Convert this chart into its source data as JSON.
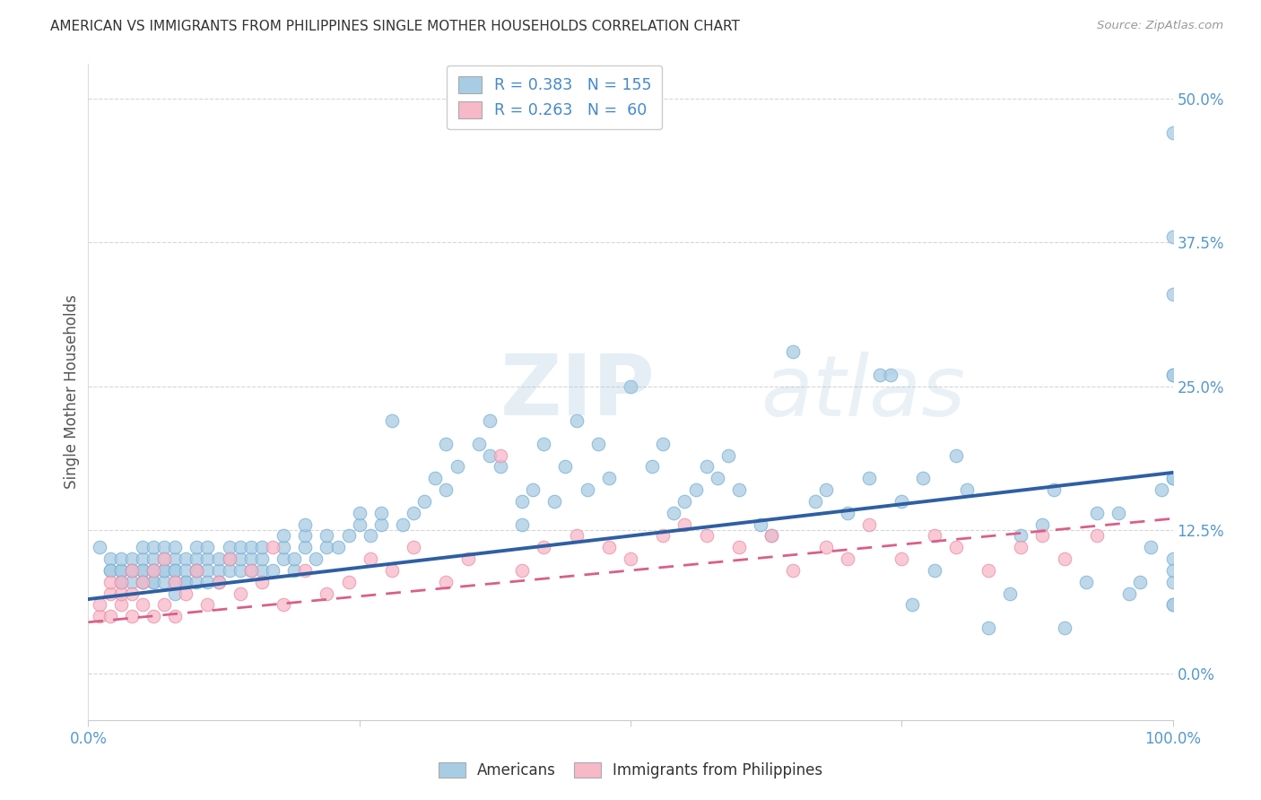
{
  "title": "AMERICAN VS IMMIGRANTS FROM PHILIPPINES SINGLE MOTHER HOUSEHOLDS CORRELATION CHART",
  "source": "Source: ZipAtlas.com",
  "ylabel": "Single Mother Households",
  "ytick_values": [
    0.0,
    12.5,
    25.0,
    37.5,
    50.0
  ],
  "ytick_labels": [
    "0.0%",
    "12.5%",
    "25.0%",
    "37.5%",
    "50.0%"
  ],
  "xlim": [
    0.0,
    100.0
  ],
  "ylim": [
    -4.0,
    53.0
  ],
  "bg_color": "#ffffff",
  "watermark_zip": "ZIP",
  "watermark_atlas": "atlas",
  "legend_r1": "R = 0.383   N = 155",
  "legend_r2": "R = 0.263   N =  60",
  "blue_scatter_color": "#a8cce4",
  "pink_scatter_color": "#f7b8c8",
  "blue_scatter_edge": "#7ab0d4",
  "pink_scatter_edge": "#e890a8",
  "blue_line_color": "#2e5fa3",
  "pink_line_color": "#d95f8a",
  "grid_color": "#cccccc",
  "title_color": "#333333",
  "source_color": "#999999",
  "axis_tick_color": "#5599cc",
  "ylabel_color": "#555555",
  "legend_text_color": "#333333",
  "legend_val_color": "#4488cc",
  "legend_label1": "Americans",
  "legend_label2": "Immigrants from Philippines",
  "americans_x": [
    1,
    2,
    2,
    2,
    3,
    3,
    3,
    3,
    3,
    4,
    4,
    4,
    4,
    5,
    5,
    5,
    5,
    5,
    5,
    6,
    6,
    6,
    6,
    6,
    6,
    7,
    7,
    7,
    7,
    7,
    8,
    8,
    8,
    8,
    8,
    8,
    9,
    9,
    9,
    9,
    10,
    10,
    10,
    10,
    10,
    11,
    11,
    11,
    11,
    12,
    12,
    12,
    13,
    13,
    13,
    14,
    14,
    14,
    15,
    15,
    15,
    16,
    16,
    16,
    17,
    18,
    18,
    18,
    19,
    19,
    20,
    20,
    20,
    21,
    22,
    22,
    23,
    24,
    25,
    25,
    26,
    27,
    27,
    28,
    29,
    30,
    31,
    32,
    33,
    33,
    34,
    36,
    37,
    37,
    38,
    40,
    40,
    41,
    42,
    43,
    44,
    45,
    46,
    47,
    48,
    50,
    52,
    53,
    54,
    55,
    56,
    57,
    58,
    59,
    60,
    62,
    63,
    65,
    67,
    68,
    70,
    72,
    73,
    74,
    75,
    76,
    77,
    78,
    80,
    81,
    83,
    85,
    86,
    88,
    89,
    90,
    92,
    93,
    95,
    96,
    97,
    98,
    99,
    100,
    100,
    100,
    100,
    100,
    100,
    100,
    100,
    100,
    100,
    100,
    100
  ],
  "americans_y": [
    11,
    10,
    9,
    9,
    9,
    8,
    9,
    10,
    8,
    9,
    10,
    9,
    8,
    9,
    10,
    8,
    11,
    9,
    8,
    10,
    9,
    8,
    11,
    9,
    8,
    10,
    9,
    8,
    11,
    9,
    7,
    10,
    9,
    8,
    11,
    9,
    8,
    10,
    9,
    8,
    10,
    9,
    8,
    11,
    9,
    10,
    9,
    8,
    11,
    9,
    10,
    8,
    9,
    10,
    11,
    9,
    10,
    11,
    9,
    10,
    11,
    9,
    10,
    11,
    9,
    10,
    11,
    12,
    9,
    10,
    11,
    12,
    13,
    10,
    11,
    12,
    11,
    12,
    13,
    14,
    12,
    13,
    14,
    22,
    13,
    14,
    15,
    17,
    20,
    16,
    18,
    20,
    22,
    19,
    18,
    13,
    15,
    16,
    20,
    15,
    18,
    22,
    16,
    20,
    17,
    25,
    18,
    20,
    14,
    15,
    16,
    18,
    17,
    19,
    16,
    13,
    12,
    28,
    15,
    16,
    14,
    17,
    26,
    26,
    15,
    6,
    17,
    9,
    19,
    16,
    4,
    7,
    12,
    13,
    16,
    4,
    8,
    14,
    14,
    7,
    8,
    11,
    16,
    47,
    10,
    17,
    33,
    38,
    26,
    26,
    8,
    6,
    9,
    6,
    17
  ],
  "philippines_x": [
    1,
    1,
    2,
    2,
    2,
    3,
    3,
    3,
    4,
    4,
    4,
    5,
    5,
    6,
    6,
    7,
    7,
    8,
    8,
    9,
    10,
    11,
    12,
    13,
    14,
    15,
    16,
    17,
    18,
    20,
    22,
    24,
    26,
    28,
    30,
    33,
    35,
    38,
    40,
    42,
    45,
    48,
    50,
    53,
    55,
    57,
    60,
    63,
    65,
    68,
    70,
    72,
    75,
    78,
    80,
    83,
    86,
    88,
    90,
    93
  ],
  "philippines_y": [
    5,
    6,
    5,
    7,
    8,
    6,
    7,
    8,
    5,
    7,
    9,
    6,
    8,
    5,
    9,
    6,
    10,
    5,
    8,
    7,
    9,
    6,
    8,
    10,
    7,
    9,
    8,
    11,
    6,
    9,
    7,
    8,
    10,
    9,
    11,
    8,
    10,
    19,
    9,
    11,
    12,
    11,
    10,
    12,
    13,
    12,
    11,
    12,
    9,
    11,
    10,
    13,
    10,
    12,
    11,
    9,
    11,
    12,
    10,
    12
  ],
  "americans_trend_x": [
    0,
    100
  ],
  "americans_trend_y": [
    6.5,
    17.5
  ],
  "philippines_trend_x": [
    0,
    100
  ],
  "philippines_trend_y": [
    4.5,
    13.5
  ]
}
